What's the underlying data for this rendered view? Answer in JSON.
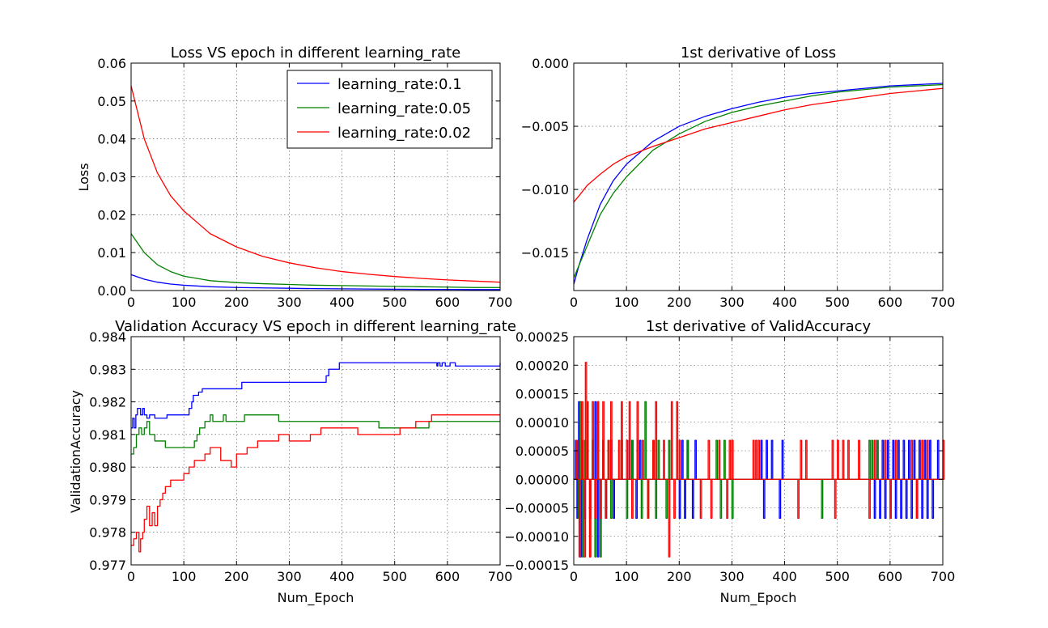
{
  "colors": {
    "lr01": "#0000ff",
    "lr005": "#008000",
    "lr002": "#ff0000"
  },
  "chart_data": [
    {
      "type": "line",
      "title": "Loss VS epoch in different learning_rate",
      "xlabel": "",
      "ylabel": "Loss",
      "xlim": [
        0,
        700
      ],
      "ylim": [
        0,
        0.06
      ],
      "xticks": [
        0,
        100,
        200,
        300,
        400,
        500,
        600,
        700
      ],
      "yticks": [
        0.0,
        0.01,
        0.02,
        0.03,
        0.04,
        0.05,
        0.06
      ],
      "ytick_labels": [
        "0.00",
        "0.01",
        "0.02",
        "0.03",
        "0.04",
        "0.05",
        "0.06"
      ],
      "grid": true,
      "legend": "top-right",
      "x": [
        0,
        25,
        50,
        75,
        100,
        150,
        200,
        250,
        300,
        350,
        400,
        450,
        500,
        550,
        600,
        650,
        700
      ],
      "series": [
        {
          "name": "learning_rate:0.1",
          "color": "#0000ff",
          "values": [
            0.0042,
            0.003,
            0.0022,
            0.0017,
            0.0014,
            0.001,
            0.0008,
            0.0007,
            0.0006,
            0.0005,
            0.00045,
            0.0004,
            0.00035,
            0.0003,
            0.0003,
            0.00025,
            0.00025
          ]
        },
        {
          "name": "learning_rate:0.05",
          "color": "#008000",
          "values": [
            0.015,
            0.01,
            0.0068,
            0.005,
            0.0038,
            0.0026,
            0.0021,
            0.0018,
            0.0016,
            0.0014,
            0.0013,
            0.0012,
            0.0011,
            0.001,
            0.0009,
            0.0008,
            0.0008
          ]
        },
        {
          "name": "learning_rate:0.02",
          "color": "#ff0000",
          "values": [
            0.054,
            0.04,
            0.031,
            0.025,
            0.021,
            0.015,
            0.0115,
            0.009,
            0.0073,
            0.006,
            0.005,
            0.0043,
            0.0037,
            0.0032,
            0.0028,
            0.0025,
            0.0022
          ]
        }
      ]
    },
    {
      "type": "line",
      "title": "1st derivative of Loss",
      "xlabel": "",
      "ylabel": "",
      "xlim": [
        0,
        700
      ],
      "ylim": [
        -0.018,
        0.0
      ],
      "xticks": [
        0,
        100,
        200,
        300,
        400,
        500,
        600,
        700
      ],
      "yticks": [
        -0.015,
        -0.01,
        -0.005,
        0.0
      ],
      "ytick_labels": [
        "−0.015",
        "−0.010",
        "−0.005",
        "0.000"
      ],
      "grid": true,
      "x": [
        0,
        10,
        25,
        50,
        75,
        100,
        150,
        200,
        250,
        300,
        350,
        400,
        450,
        500,
        550,
        600,
        650,
        700
      ],
      "series": [
        {
          "color": "#0000ff",
          "values": [
            -0.0175,
            -0.016,
            -0.014,
            -0.0112,
            -0.0093,
            -0.008,
            -0.0062,
            -0.005,
            -0.0042,
            -0.0036,
            -0.0031,
            -0.0027,
            -0.0024,
            -0.0022,
            -0.002,
            -0.0018,
            -0.0017,
            -0.0016
          ]
        },
        {
          "color": "#008000",
          "values": [
            -0.017,
            -0.016,
            -0.0145,
            -0.012,
            -0.0103,
            -0.009,
            -0.0069,
            -0.0056,
            -0.0046,
            -0.0039,
            -0.0034,
            -0.003,
            -0.0026,
            -0.0023,
            -0.0021,
            -0.0019,
            -0.0018,
            -0.0017
          ]
        },
        {
          "color": "#ff0000",
          "values": [
            -0.011,
            -0.0105,
            -0.0097,
            -0.0088,
            -0.008,
            -0.0074,
            -0.0066,
            -0.0059,
            -0.0052,
            -0.0047,
            -0.0042,
            -0.0037,
            -0.0033,
            -0.003,
            -0.0027,
            -0.0024,
            -0.0022,
            -0.002
          ]
        }
      ]
    },
    {
      "type": "line",
      "title": "Validation Accuracy VS epoch in different learning_rate",
      "xlabel": "Num_Epoch",
      "ylabel": "ValidationAccuracy",
      "xlim": [
        0,
        700
      ],
      "ylim": [
        0.977,
        0.984
      ],
      "xticks": [
        0,
        100,
        200,
        300,
        400,
        500,
        600,
        700
      ],
      "yticks": [
        0.977,
        0.978,
        0.979,
        0.98,
        0.981,
        0.982,
        0.983,
        0.984
      ],
      "ytick_labels": [
        "0.977",
        "0.978",
        "0.979",
        "0.980",
        "0.981",
        "0.982",
        "0.983",
        "0.984"
      ],
      "grid": true,
      "step": true,
      "series": [
        {
          "color": "#0000ff",
          "x": [
            0,
            3,
            6,
            9,
            12,
            18,
            22,
            25,
            30,
            35,
            45,
            60,
            68,
            75,
            110,
            115,
            118,
            122,
            128,
            135,
            210,
            215,
            370,
            375,
            382,
            395,
            580,
            582,
            586,
            590,
            596,
            605,
            615,
            700
          ],
          "values": [
            0.9812,
            0.9815,
            0.9812,
            0.9816,
            0.9818,
            0.9816,
            0.9818,
            0.9816,
            0.9815,
            0.9816,
            0.9815,
            0.9815,
            0.9816,
            0.9816,
            0.9818,
            0.982,
            0.9822,
            0.9822,
            0.9823,
            0.9824,
            0.9826,
            0.9826,
            0.9828,
            0.983,
            0.983,
            0.9832,
            0.9831,
            0.9832,
            0.9831,
            0.9832,
            0.9831,
            0.9832,
            0.9831,
            0.9832
          ]
        },
        {
          "color": "#008000",
          "x": [
            0,
            5,
            10,
            15,
            20,
            25,
            30,
            35,
            45,
            55,
            65,
            70,
            110,
            120,
            125,
            130,
            140,
            150,
            155,
            175,
            180,
            200,
            215,
            270,
            280,
            290,
            310,
            360,
            370,
            460,
            470,
            565,
            585,
            700
          ],
          "values": [
            0.9804,
            0.9806,
            0.981,
            0.9812,
            0.981,
            0.9812,
            0.9814,
            0.981,
            0.9808,
            0.9808,
            0.9806,
            0.9806,
            0.9806,
            0.9808,
            0.981,
            0.9812,
            0.9814,
            0.9816,
            0.9814,
            0.9816,
            0.9814,
            0.9814,
            0.9816,
            0.9816,
            0.9814,
            0.9814,
            0.9814,
            0.9814,
            0.9814,
            0.9814,
            0.9812,
            0.9814,
            0.9814,
            0.9814
          ]
        },
        {
          "color": "#ff0000",
          "x": [
            0,
            5,
            10,
            15,
            18,
            22,
            25,
            30,
            35,
            40,
            45,
            50,
            55,
            60,
            65,
            75,
            90,
            100,
            110,
            120,
            130,
            140,
            150,
            170,
            190,
            200,
            220,
            240,
            260,
            280,
            300,
            340,
            360,
            420,
            430,
            490,
            510,
            540,
            570,
            700
          ],
          "values": [
            0.9776,
            0.9778,
            0.978,
            0.9774,
            0.9778,
            0.978,
            0.9784,
            0.9788,
            0.9782,
            0.9786,
            0.9782,
            0.9788,
            0.979,
            0.9792,
            0.9794,
            0.9796,
            0.9796,
            0.9798,
            0.98,
            0.9802,
            0.9802,
            0.9804,
            0.9806,
            0.9802,
            0.98,
            0.9804,
            0.9806,
            0.9808,
            0.9808,
            0.981,
            0.9808,
            0.981,
            0.9812,
            0.9812,
            0.981,
            0.981,
            0.9812,
            0.9814,
            0.9816,
            0.9816
          ]
        }
      ]
    },
    {
      "type": "line",
      "title": "1st derivative of ValidAccuracy",
      "xlabel": "Num_Epoch",
      "ylabel": "",
      "xlim": [
        0,
        700
      ],
      "ylim": [
        -0.00015,
        0.00025
      ],
      "xticks": [
        0,
        100,
        200,
        300,
        400,
        500,
        600,
        700
      ],
      "yticks": [
        -0.00015,
        -0.0001,
        -5e-05,
        0,
        5e-05,
        0.0001,
        0.00015,
        0.0002,
        0.00025
      ],
      "ytick_labels": [
        "−0.00015",
        "−0.00010",
        "−0.00005",
        "0.00000",
        "0.00005",
        "0.00010",
        "0.00015",
        "0.00020",
        "0.00025"
      ],
      "grid": true,
      "spikes": true,
      "series": [
        {
          "color": "#0000ff",
          "x": [
            3,
            6,
            9,
            12,
            15,
            20,
            25,
            30,
            40,
            45,
            55,
            60,
            70,
            75,
            105,
            110,
            118,
            125,
            200,
            205,
            210,
            215,
            225,
            230,
            355,
            360,
            365,
            375,
            390,
            395,
            570,
            575,
            580,
            585,
            590,
            595,
            600,
            605,
            610,
            615,
            620,
            625,
            630,
            635,
            640,
            645,
            650,
            655,
            660,
            665,
            670,
            675,
            680,
            690
          ],
          "values": [
            6.82e-05,
            -6.82e-05,
            0.000136,
            -0.000136,
            6.82e-05,
            -6.82e-05,
            6.82e-05,
            -6.82e-05,
            0.000136,
            -0.000136,
            6.82e-05,
            -6.82e-05,
            6.82e-05,
            -6.82e-05,
            6.82e-05,
            6.82e-05,
            -6.82e-05,
            6.82e-05,
            -6.82e-05,
            6.82e-05,
            -6.82e-05,
            6.82e-05,
            -6.82e-05,
            6.82e-05,
            6.82e-05,
            -6.82e-05,
            6.82e-05,
            6.82e-05,
            -6.82e-05,
            6.82e-05,
            -6.82e-05,
            6.82e-05,
            -6.82e-05,
            6.82e-05,
            -6.82e-05,
            6.82e-05,
            -6.82e-05,
            6.82e-05,
            -6.82e-05,
            6.82e-05,
            -6.82e-05,
            6.82e-05,
            -6.82e-05,
            6.82e-05,
            -6.82e-05,
            6.82e-05,
            -6.82e-05,
            6.82e-05,
            -6.82e-05,
            6.82e-05,
            -6.82e-05,
            6.82e-05,
            -6.82e-05,
            6.82e-05
          ]
        },
        {
          "color": "#008000",
          "x": [
            4,
            8,
            12,
            16,
            20,
            25,
            30,
            35,
            40,
            45,
            50,
            55,
            60,
            65,
            70,
            90,
            100,
            110,
            120,
            128,
            135,
            140,
            150,
            155,
            160,
            175,
            180,
            215,
            270,
            278,
            285,
            300,
            470,
            560,
            565,
            575
          ],
          "values": [
            6.82e-05,
            -6.82e-05,
            0.000136,
            -0.000136,
            6.82e-05,
            0.000136,
            -0.000136,
            6.82e-05,
            -0.000136,
            0.000136,
            -0.000136,
            6.82e-05,
            -6.82e-05,
            6.82e-05,
            -6.82e-05,
            6.82e-05,
            -6.82e-05,
            6.82e-05,
            6.82e-05,
            -6.82e-05,
            0.000136,
            -6.82e-05,
            6.82e-05,
            -6.82e-05,
            6.82e-05,
            -6.82e-05,
            6.82e-05,
            6.82e-05,
            6.82e-05,
            -6.82e-05,
            6.82e-05,
            -6.82e-05,
            -6.82e-05,
            6.82e-05,
            6.82e-05,
            6.82e-05
          ]
        },
        {
          "color": "#ff0000",
          "x": [
            5,
            10,
            15,
            20,
            22,
            25,
            30,
            35,
            40,
            45,
            50,
            55,
            60,
            65,
            70,
            85,
            90,
            100,
            105,
            110,
            120,
            130,
            140,
            150,
            155,
            170,
            180,
            185,
            190,
            195,
            200,
            240,
            255,
            260,
            275,
            290,
            295,
            300,
            340,
            345,
            350,
            425,
            430,
            440,
            490,
            495,
            500,
            510,
            520,
            540,
            560,
            570,
            590,
            600,
            610,
            640,
            650,
            660,
            670,
            700
          ],
          "values": [
            6.82e-05,
            -0.000136,
            0.000136,
            -0.000136,
            0.000205,
            0.000136,
            -0.000136,
            0.000136,
            -6.82e-05,
            0.000136,
            -6.82e-05,
            0.000136,
            -6.82e-05,
            6.82e-05,
            0.000136,
            6.82e-05,
            0.000136,
            6.82e-05,
            0.000136,
            -6.82e-05,
            0.000136,
            6.82e-05,
            -6.82e-05,
            6.82e-05,
            0.000136,
            6.82e-05,
            -0.000136,
            0.000136,
            -6.82e-05,
            0.000136,
            6.82e-05,
            -6.82e-05,
            6.82e-05,
            -6.82e-05,
            6.82e-05,
            -6.82e-05,
            6.82e-05,
            6.82e-05,
            6.82e-05,
            6.82e-05,
            6.82e-05,
            -6.82e-05,
            6.82e-05,
            6.82e-05,
            6.82e-05,
            -6.82e-05,
            6.82e-05,
            6.82e-05,
            6.82e-05,
            6.82e-05,
            -6.82e-05,
            6.82e-05,
            6.82e-05,
            -6.82e-05,
            6.82e-05,
            6.82e-05,
            -6.82e-05,
            6.82e-05,
            6.82e-05,
            6.82e-05
          ]
        }
      ]
    }
  ]
}
